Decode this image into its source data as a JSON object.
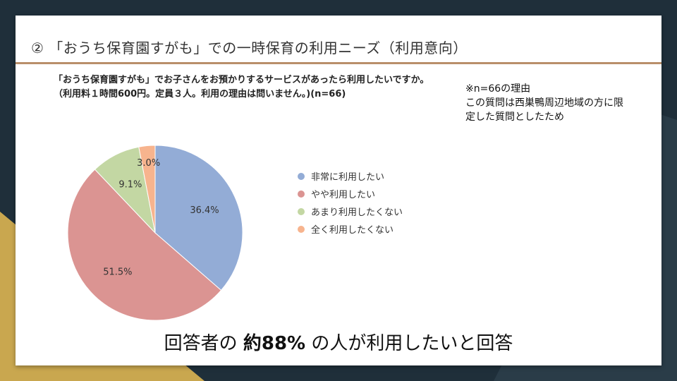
{
  "slide": {
    "title": "② 「おうち保育園すがも」での一時保育の利用ニーズ（利用意向）",
    "question": "「おうち保育園すがも」でお子さんをお預かりするサービスがあったら利用したいですか。\n（利用料１時間600円。定員３人。利用の理由は問いません。)(n=66)",
    "note": "※n=66の理由\nこの質問は西巣鴨周辺地域の方に限定した質問としたため",
    "conclusion_pre": "回答者の ",
    "conclusion_bold": "約88%",
    "conclusion_post": " の人が利用したいと回答"
  },
  "colors": {
    "accent_rule": "#b98f6a",
    "frame": "#1f2f3a",
    "gold": "#c9a74f"
  },
  "chart_data": {
    "type": "pie",
    "categories": [
      "非常に利用したい",
      "やや利用したい",
      "あまり利用したくない",
      "全く利用したくない"
    ],
    "values": [
      36.4,
      51.5,
      9.1,
      3.0
    ],
    "labels": [
      "36.4%",
      "51.5%",
      "9.1%",
      "3.0%"
    ],
    "colors": [
      "#93acd6",
      "#db9492",
      "#c3d7a3",
      "#f7b48e"
    ],
    "legend_position": "right"
  }
}
